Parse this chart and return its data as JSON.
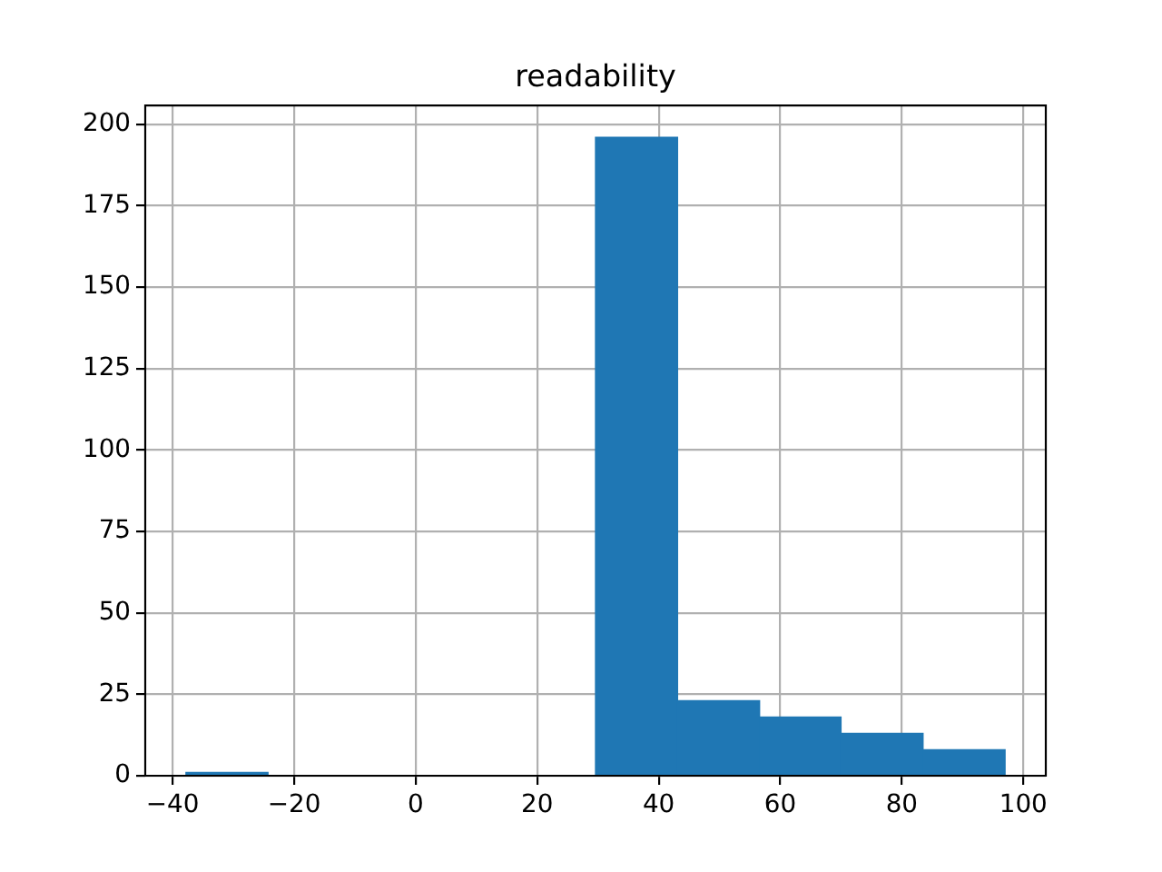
{
  "chart_data": {
    "type": "histogram",
    "title": "readability",
    "bins": [
      -37.8,
      -24.3,
      -10.8,
      2.6,
      16.1,
      29.6,
      43.1,
      56.6,
      70.0,
      83.5,
      97.0
    ],
    "values": [
      1,
      0,
      0,
      0,
      0,
      196,
      23,
      18,
      13,
      8
    ],
    "color": "#1f77b4",
    "xlim": [
      -44.5,
      103.7
    ],
    "ylim": [
      0,
      205.8
    ],
    "xticks": [
      -40,
      -20,
      0,
      20,
      40,
      60,
      80,
      100
    ],
    "yticks": [
      0,
      25,
      50,
      75,
      100,
      125,
      150,
      175,
      200
    ],
    "grid": true
  }
}
